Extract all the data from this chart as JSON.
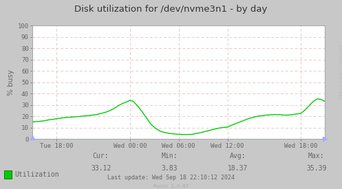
{
  "title": "Disk utilization for /dev/nvme3n1 - by day",
  "ylabel": "% busy",
  "bg_color": "#c8c8c8",
  "plot_bg_color": "#ffffff",
  "grid_h_color": "#e8c8c8",
  "grid_v_color": "#e8c8c8",
  "line_color": "#00cc00",
  "line_color_dark": "#006600",
  "ylim": [
    0,
    100
  ],
  "yticks": [
    0,
    10,
    20,
    30,
    40,
    50,
    60,
    70,
    80,
    90,
    100
  ],
  "xtick_labels": [
    "Tue 18:00",
    "Wed 00:00",
    "Wed 06:00",
    "Wed 12:00",
    "Wed 18:00"
  ],
  "xtick_positions": [
    0.083,
    0.333,
    0.5,
    0.667,
    0.917
  ],
  "legend_label": "Utilization",
  "cur": "33.12",
  "min": "3.83",
  "avg": "18.37",
  "max": "35.39",
  "last_update": "Last update: Wed Sep 18 22:10:12 2024",
  "munin_version": "Munin 2.0.67",
  "rrdtool_label": "RRDTOOL / TOBI OETIKER",
  "font_color": "#666666",
  "title_color": "#333333",
  "curve_x": [
    0.0,
    0.015,
    0.025,
    0.04,
    0.055,
    0.07,
    0.083,
    0.1,
    0.115,
    0.13,
    0.145,
    0.16,
    0.175,
    0.19,
    0.205,
    0.22,
    0.235,
    0.25,
    0.265,
    0.28,
    0.295,
    0.31,
    0.325,
    0.333,
    0.345,
    0.36,
    0.375,
    0.39,
    0.405,
    0.42,
    0.435,
    0.45,
    0.465,
    0.48,
    0.5,
    0.515,
    0.53,
    0.545,
    0.56,
    0.575,
    0.59,
    0.605,
    0.62,
    0.637,
    0.65,
    0.667,
    0.68,
    0.695,
    0.71,
    0.725,
    0.74,
    0.755,
    0.77,
    0.785,
    0.8,
    0.815,
    0.83,
    0.845,
    0.86,
    0.875,
    0.89,
    0.905,
    0.917,
    0.93,
    0.945,
    0.96,
    0.975,
    0.99,
    1.0
  ],
  "curve_y": [
    15.0,
    15.3,
    15.5,
    16.0,
    16.8,
    17.3,
    17.8,
    18.5,
    18.8,
    19.2,
    19.5,
    19.8,
    20.2,
    20.5,
    21.0,
    21.5,
    22.5,
    23.5,
    25.0,
    27.0,
    29.5,
    31.5,
    33.0,
    34.0,
    33.0,
    29.0,
    24.0,
    18.5,
    13.0,
    9.5,
    7.0,
    5.8,
    5.0,
    4.5,
    4.0,
    3.9,
    3.83,
    4.0,
    4.8,
    5.5,
    6.5,
    7.5,
    8.5,
    9.5,
    10.0,
    10.5,
    12.0,
    13.5,
    15.0,
    16.5,
    18.0,
    19.0,
    20.0,
    20.5,
    21.0,
    21.2,
    21.5,
    21.3,
    21.0,
    21.0,
    21.5,
    22.0,
    22.5,
    25.0,
    29.0,
    33.0,
    35.39,
    34.5,
    33.12
  ]
}
